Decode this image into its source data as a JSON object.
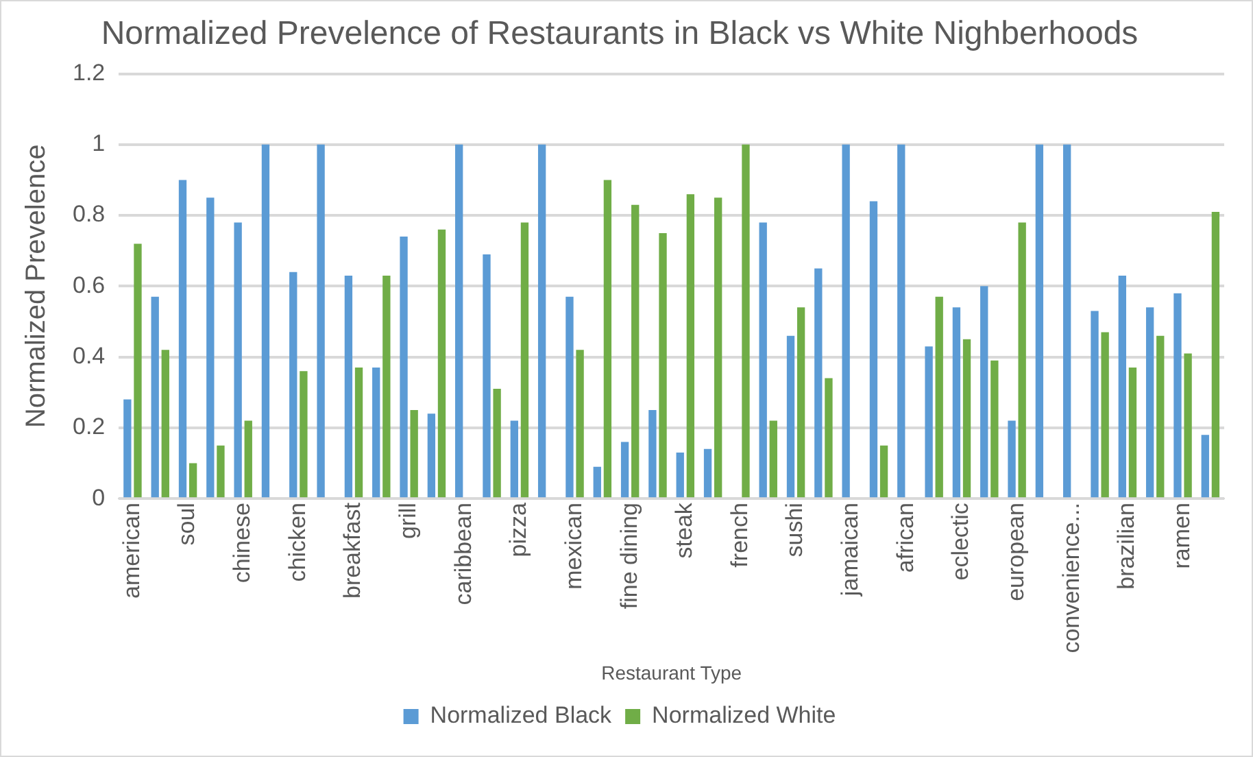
{
  "chart_data": {
    "type": "bar",
    "title": "Normalized Prevelence of Restaurants in Black vs White Nighberhoods",
    "xlabel": "Restaurant Type",
    "ylabel": "Normalized Prevelence",
    "categories": [
      "american",
      null,
      "soul",
      null,
      "chinese",
      null,
      "chicken",
      null,
      "breakfast",
      null,
      "grill",
      null,
      "caribbean",
      null,
      "pizza",
      null,
      "mexican",
      null,
      "fine dining",
      null,
      "steak",
      null,
      "french",
      null,
      "sushi",
      null,
      "jamaican",
      null,
      "african",
      null,
      "eclectic",
      null,
      "european",
      null,
      "convenience...",
      null,
      "brazilian",
      null,
      "ramen",
      null
    ],
    "series": [
      {
        "name": "Normalized Black",
        "color": "#5b9bd5",
        "values": [
          0.28,
          0.57,
          0.9,
          0.85,
          0.78,
          1,
          0.64,
          1,
          0.63,
          0.37,
          0.74,
          0.24,
          1,
          0.69,
          0.22,
          1,
          0.57,
          0.09,
          0.16,
          0.25,
          0.13,
          0.14,
          0,
          0.78,
          0.46,
          0.65,
          1,
          0.84,
          1,
          0.43,
          0.54,
          0.6,
          0.22,
          1,
          1,
          0.53,
          0.63,
          0.54,
          0.58,
          0.18
        ]
      },
      {
        "name": "Normalized White",
        "color": "#70ad47",
        "values": [
          0.72,
          0.42,
          0.1,
          0.15,
          0.22,
          0,
          0.36,
          0,
          0.37,
          0.63,
          0.25,
          0.76,
          0,
          0.31,
          0.78,
          0,
          0.42,
          0.9,
          0.83,
          0.75,
          0.86,
          0.85,
          1,
          0.22,
          0.54,
          0.34,
          0,
          0.15,
          0,
          0.57,
          0.45,
          0.39,
          0.78,
          0,
          0,
          0.47,
          0.37,
          0.46,
          0.41,
          0.81
        ]
      }
    ],
    "ylim": [
      0,
      1.2
    ],
    "yticks": [
      0,
      0.2,
      0.4,
      0.6,
      0.8,
      1,
      1.2
    ],
    "grid": "y",
    "legend": "bottom"
  }
}
